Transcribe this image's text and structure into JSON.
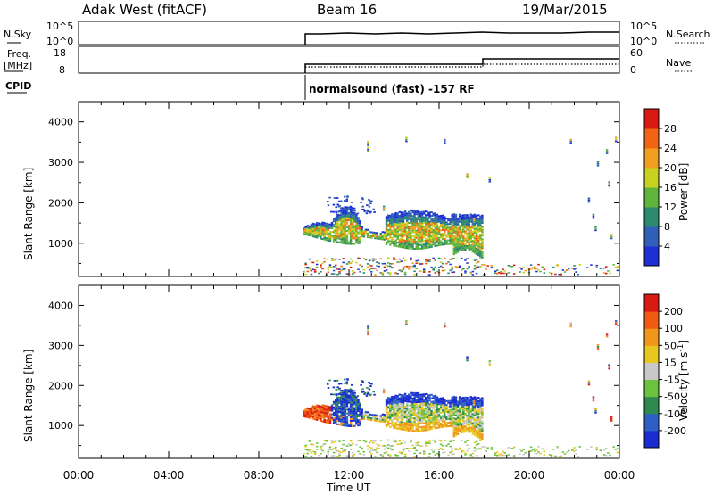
{
  "header": {
    "station": "Adak West (fitACF)",
    "beam": "Beam 16",
    "date": "19/Mar/2015"
  },
  "top_panels": {
    "nsky_label": "N.Sky",
    "nsky_ticks": [
      "10^5",
      "10^0"
    ],
    "nsearch_label": "N.Search",
    "nsearch_ticks": [
      "10^5",
      "10^0"
    ],
    "freq_label_1": "Freq.",
    "freq_label_2": "[MHz]",
    "freq_ticks": [
      "18",
      "8"
    ],
    "nave_label": "Nave",
    "nave_ticks": [
      "60",
      "0"
    ],
    "cpid_label": "CPID",
    "cpid_text": "normalsound (fast) -157 RF"
  },
  "colors": {
    "power_scale": [
      "#1f2fd6",
      "#2f5fb8",
      "#2e8a6e",
      "#5fb43c",
      "#c8d21e",
      "#f0a01e",
      "#f06414",
      "#d81a12"
    ],
    "velocity_scale": [
      "#1a2ccf",
      "#2f5fc4",
      "#2e8a50",
      "#6cc23c",
      "#c8c8c8",
      "#e8c820",
      "#f0961a",
      "#f05a12",
      "#d81a12"
    ]
  },
  "chart_data": [
    {
      "type": "heatmap",
      "name": "power",
      "ylabel": "Slant Range [km]",
      "yticks": [
        "1000",
        "2000",
        "3000",
        "4000"
      ],
      "ylim": [
        180,
        4500
      ],
      "xlim": [
        0,
        24
      ],
      "colorbar_label": "Power [dB]",
      "colorbar_ticks": [
        "4",
        "8",
        "12",
        "16",
        "20",
        "24",
        "28"
      ],
      "zlim": [
        0,
        32
      ]
    },
    {
      "type": "heatmap",
      "name": "velocity",
      "xlabel": "Time UT",
      "ylabel": "Slant Range [km]",
      "yticks": [
        "1000",
        "2000",
        "3000",
        "4000"
      ],
      "ylim": [
        180,
        4500
      ],
      "xlim": [
        0,
        24
      ],
      "xticks": [
        "00:00",
        "04:00",
        "08:00",
        "12:00",
        "16:00",
        "20:00",
        "00:00"
      ],
      "colorbar_label": "Velocity [m s",
      "colorbar_label_sup": "-1",
      "colorbar_label_end": "]",
      "colorbar_ticks": [
        "-200",
        "-100",
        "-50",
        "-15",
        "15",
        "50",
        "100",
        "200"
      ]
    }
  ]
}
